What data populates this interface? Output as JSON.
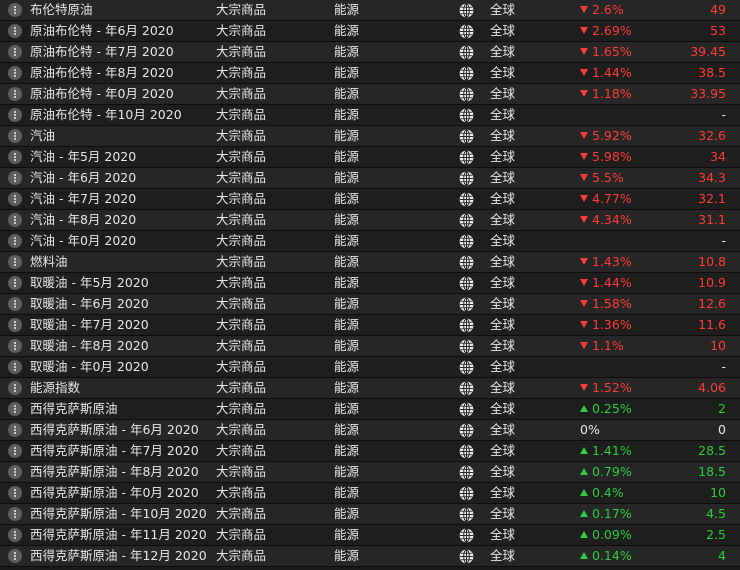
{
  "colors": {
    "down": "#ff3b3b",
    "up": "#2ecc40",
    "flat": "#e8e8e8"
  },
  "rows": [
    {
      "name": "布伦特原油",
      "category": "大宗商品",
      "sector": "能源",
      "region": "全球",
      "change": "2.6%",
      "price": "49",
      "dir": "down"
    },
    {
      "name": "原油布伦特 - 年6月 2020",
      "category": "大宗商品",
      "sector": "能源",
      "region": "全球",
      "change": "2.69%",
      "price": "53",
      "dir": "down"
    },
    {
      "name": "原油布伦特 - 年7月 2020",
      "category": "大宗商品",
      "sector": "能源",
      "region": "全球",
      "change": "1.65%",
      "price": "39.45",
      "dir": "down"
    },
    {
      "name": "原油布伦特 - 年8月 2020",
      "category": "大宗商品",
      "sector": "能源",
      "region": "全球",
      "change": "1.44%",
      "price": "38.5",
      "dir": "down"
    },
    {
      "name": "原油布伦特 - 年0月 2020",
      "category": "大宗商品",
      "sector": "能源",
      "region": "全球",
      "change": "1.18%",
      "price": "33.95",
      "dir": "down"
    },
    {
      "name": "原油布伦特 - 年10月 2020",
      "category": "大宗商品",
      "sector": "能源",
      "region": "全球",
      "change": "",
      "price": "-",
      "dir": "none"
    },
    {
      "name": "汽油",
      "category": "大宗商品",
      "sector": "能源",
      "region": "全球",
      "change": "5.92%",
      "price": "32.6",
      "dir": "down"
    },
    {
      "name": "汽油 - 年5月 2020",
      "category": "大宗商品",
      "sector": "能源",
      "region": "全球",
      "change": "5.98%",
      "price": "34",
      "dir": "down"
    },
    {
      "name": "汽油 - 年6月 2020",
      "category": "大宗商品",
      "sector": "能源",
      "region": "全球",
      "change": "5.5%",
      "price": "34.3",
      "dir": "down"
    },
    {
      "name": "汽油 - 年7月 2020",
      "category": "大宗商品",
      "sector": "能源",
      "region": "全球",
      "change": "4.77%",
      "price": "32.1",
      "dir": "down"
    },
    {
      "name": "汽油 - 年8月 2020",
      "category": "大宗商品",
      "sector": "能源",
      "region": "全球",
      "change": "4.34%",
      "price": "31.1",
      "dir": "down"
    },
    {
      "name": "汽油 - 年0月 2020",
      "category": "大宗商品",
      "sector": "能源",
      "region": "全球",
      "change": "",
      "price": "-",
      "dir": "none"
    },
    {
      "name": "燃料油",
      "category": "大宗商品",
      "sector": "能源",
      "region": "全球",
      "change": "1.43%",
      "price": "10.8",
      "dir": "down"
    },
    {
      "name": "取暖油 - 年5月 2020",
      "category": "大宗商品",
      "sector": "能源",
      "region": "全球",
      "change": "1.44%",
      "price": "10.9",
      "dir": "down"
    },
    {
      "name": "取暖油 - 年6月 2020",
      "category": "大宗商品",
      "sector": "能源",
      "region": "全球",
      "change": "1.58%",
      "price": "12.6",
      "dir": "down"
    },
    {
      "name": "取暖油 - 年7月 2020",
      "category": "大宗商品",
      "sector": "能源",
      "region": "全球",
      "change": "1.36%",
      "price": "11.6",
      "dir": "down"
    },
    {
      "name": "取暖油 - 年8月 2020",
      "category": "大宗商品",
      "sector": "能源",
      "region": "全球",
      "change": "1.1%",
      "price": "10",
      "dir": "down"
    },
    {
      "name": "取暖油 - 年0月 2020",
      "category": "大宗商品",
      "sector": "能源",
      "region": "全球",
      "change": "",
      "price": "-",
      "dir": "none"
    },
    {
      "name": "能源指数",
      "category": "大宗商品",
      "sector": "能源",
      "region": "全球",
      "change": "1.52%",
      "price": "4.06",
      "dir": "down"
    },
    {
      "name": "西得克萨斯原油",
      "category": "大宗商品",
      "sector": "能源",
      "region": "全球",
      "change": "0.25%",
      "price": "2",
      "dir": "up"
    },
    {
      "name": "西得克萨斯原油 - 年6月 2020",
      "category": "大宗商品",
      "sector": "能源",
      "region": "全球",
      "change": "0%",
      "price": "0",
      "dir": "flat"
    },
    {
      "name": "西得克萨斯原油 - 年7月 2020",
      "category": "大宗商品",
      "sector": "能源",
      "region": "全球",
      "change": "1.41%",
      "price": "28.5",
      "dir": "up"
    },
    {
      "name": "西得克萨斯原油 - 年8月 2020",
      "category": "大宗商品",
      "sector": "能源",
      "region": "全球",
      "change": "0.79%",
      "price": "18.5",
      "dir": "up"
    },
    {
      "name": "西得克萨斯原油 - 年0月 2020",
      "category": "大宗商品",
      "sector": "能源",
      "region": "全球",
      "change": "0.4%",
      "price": "10",
      "dir": "up"
    },
    {
      "name": "西得克萨斯原油 - 年10月 2020",
      "category": "大宗商品",
      "sector": "能源",
      "region": "全球",
      "change": "0.17%",
      "price": "4.5",
      "dir": "up"
    },
    {
      "name": "西得克萨斯原油 - 年11月 2020",
      "category": "大宗商品",
      "sector": "能源",
      "region": "全球",
      "change": "0.09%",
      "price": "2.5",
      "dir": "up"
    },
    {
      "name": "西得克萨斯原油 - 年12月 2020",
      "category": "大宗商品",
      "sector": "能源",
      "region": "全球",
      "change": "0.14%",
      "price": "4",
      "dir": "up"
    }
  ]
}
